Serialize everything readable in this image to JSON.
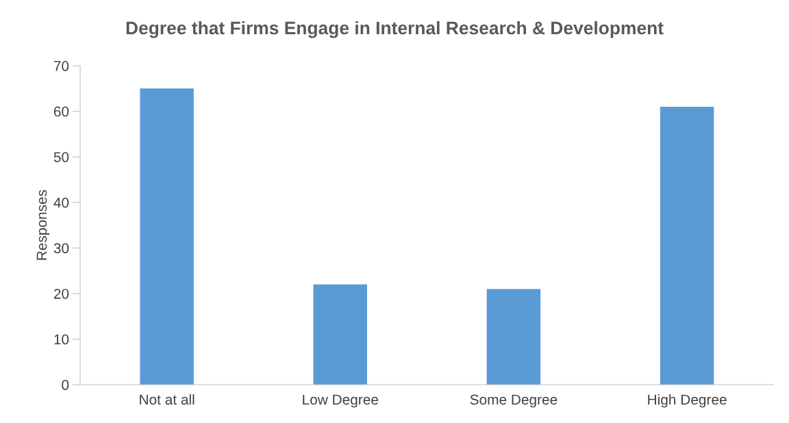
{
  "chart_data": {
    "type": "bar",
    "title": "Degree that Firms Engage in Internal Research & Development",
    "ylabel": "Responses",
    "categories": [
      "Not at all",
      "Low Degree",
      "Some Degree",
      "High Degree"
    ],
    "values": [
      65,
      22,
      21,
      61
    ],
    "color": "#5b9bd5",
    "ylim": [
      0,
      70
    ],
    "yticks": [
      0,
      10,
      20,
      30,
      40,
      50,
      60,
      70
    ],
    "grid": false,
    "legend": false
  }
}
